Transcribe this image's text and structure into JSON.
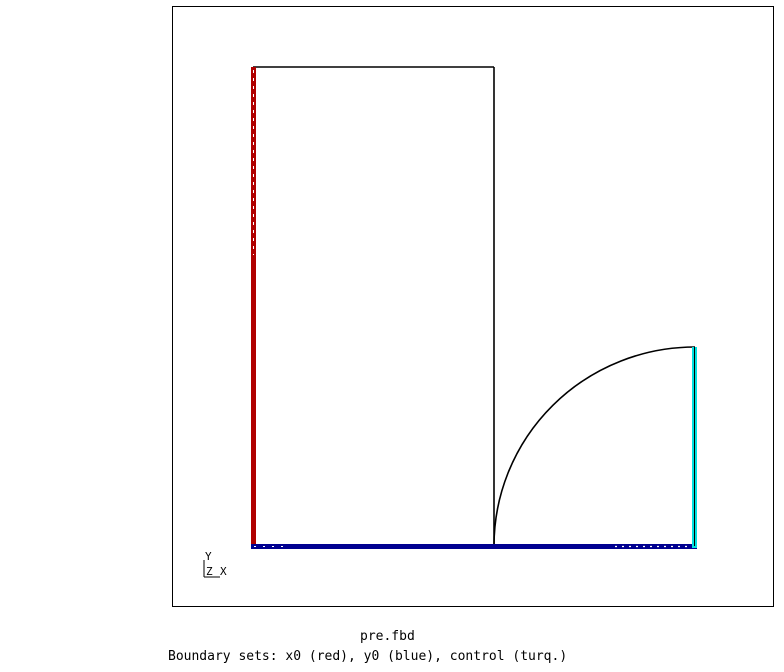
{
  "viewer": {
    "file_name": "pre.fbd",
    "caption": "Boundary sets: x0 (red), y0 (blue), control (turq.)"
  },
  "triad": {
    "y": "Y",
    "z": "Z",
    "x": "X"
  },
  "colors": {
    "background": "#ffffff",
    "geometry": "#000000",
    "x0_set": "#b00000",
    "y0_set": "#000090",
    "control_set": "#00e0e0"
  }
}
